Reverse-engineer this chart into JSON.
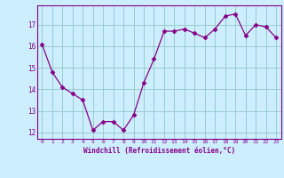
{
  "x": [
    0,
    1,
    2,
    3,
    4,
    5,
    6,
    7,
    8,
    9,
    10,
    11,
    12,
    13,
    14,
    15,
    16,
    17,
    18,
    19,
    20,
    21,
    22,
    23
  ],
  "y": [
    16.1,
    14.8,
    14.1,
    13.8,
    13.5,
    12.1,
    12.5,
    12.5,
    12.1,
    12.8,
    14.3,
    15.4,
    16.7,
    16.7,
    16.8,
    16.6,
    16.4,
    16.8,
    17.4,
    17.5,
    16.5,
    17.0,
    16.9,
    16.4
  ],
  "line_color": "#880088",
  "marker": "D",
  "marker_size": 2.5,
  "bg_color": "#cceeff",
  "grid_color": "#99cccc",
  "xlabel": "Windchill (Refroidissement éolien,°C)",
  "xlabel_color": "#880088",
  "tick_color": "#880088",
  "ylim": [
    11.7,
    17.9
  ],
  "yticks": [
    12,
    13,
    14,
    15,
    16,
    17
  ],
  "xticks": [
    0,
    1,
    2,
    3,
    4,
    5,
    6,
    7,
    8,
    9,
    10,
    11,
    12,
    13,
    14,
    15,
    16,
    17,
    18,
    19,
    20,
    21,
    22,
    23
  ]
}
